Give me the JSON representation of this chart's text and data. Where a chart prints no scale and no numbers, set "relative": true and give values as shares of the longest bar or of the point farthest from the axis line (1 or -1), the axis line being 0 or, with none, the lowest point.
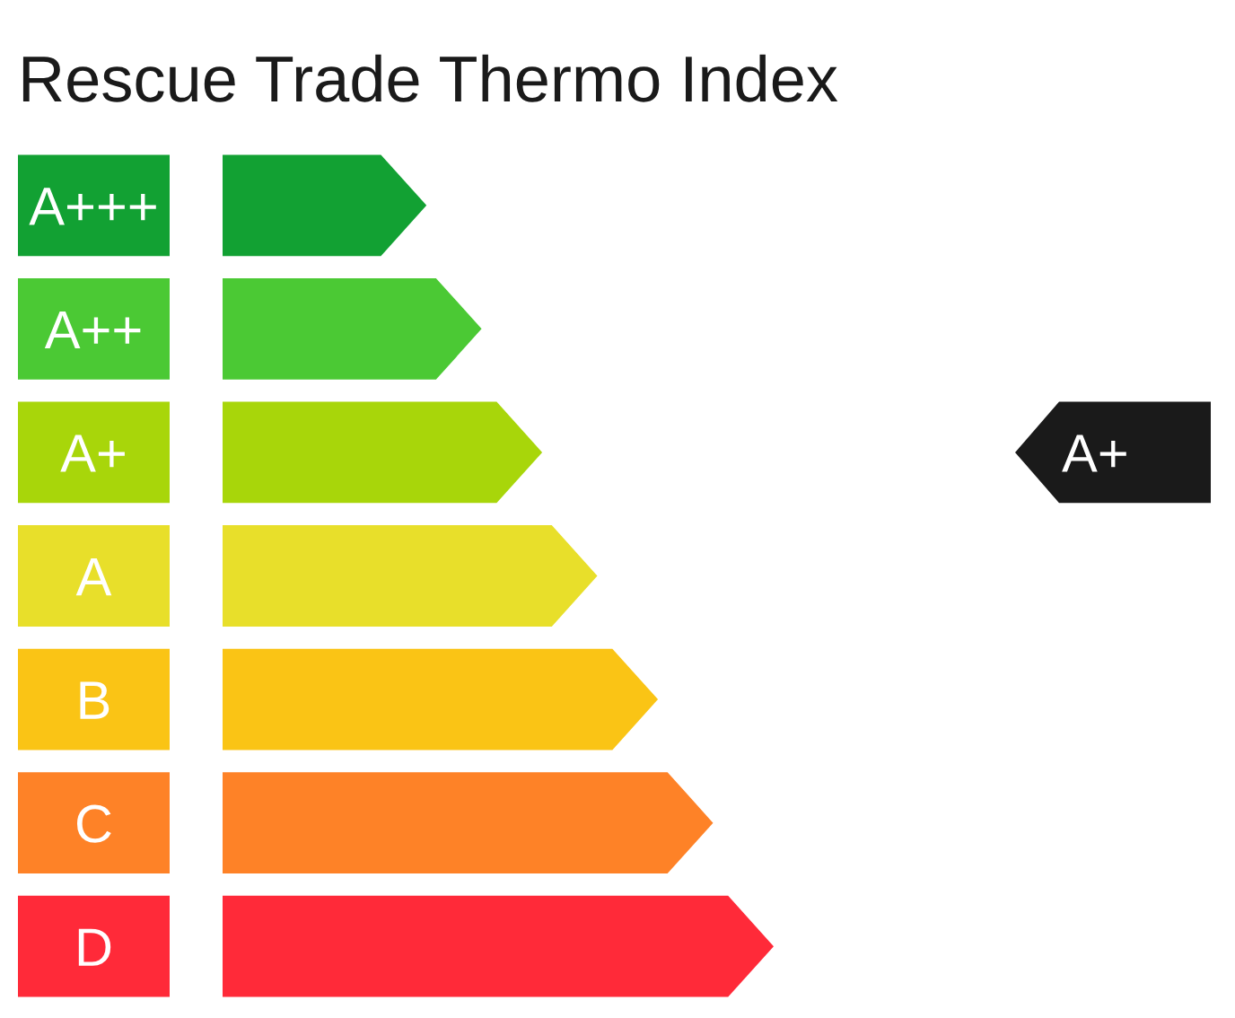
{
  "chart_data": {
    "type": "bar",
    "orientation": "horizontal",
    "relative": true,
    "title": "Rescue Trade Thermo Index",
    "categories": [
      "A+++",
      "A++",
      "A+",
      "A",
      "B",
      "C",
      "D"
    ],
    "values": [
      0.37,
      0.47,
      0.58,
      0.68,
      0.79,
      0.89,
      1
    ],
    "colors": [
      "#12a133",
      "#4bc934",
      "#a8d60a",
      "#e8df2a",
      "#fac415",
      "#fe8227",
      "#ff2a39"
    ],
    "annotations": [
      "A+"
    ]
  }
}
